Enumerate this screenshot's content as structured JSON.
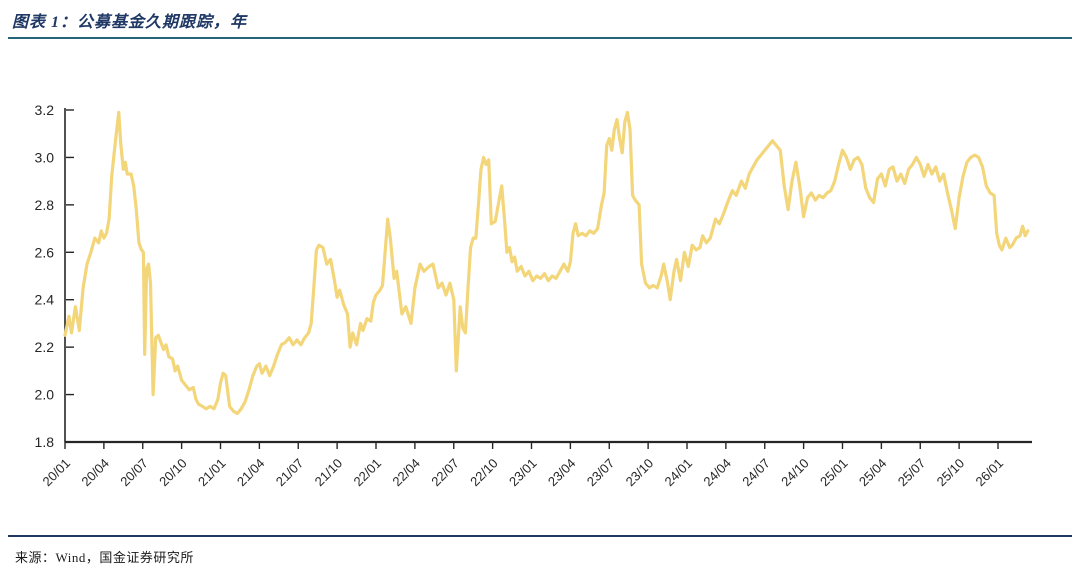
{
  "header": {
    "title": "图表 1：公募基金久期跟踪，年"
  },
  "footer": {
    "source": "来源：Wind，国金证券研究所"
  },
  "colors": {
    "series_line": "#F3D57A",
    "title_text": "#1F3864",
    "title_rule": "#266579",
    "footer_rule": "#1F3864",
    "axis": "#262626",
    "tick_label": "#262626",
    "background": "#FFFFFF"
  },
  "chart_data": {
    "type": "line",
    "title": "公募基金久期跟踪，年",
    "unit": "年",
    "xlabel": "",
    "ylabel": "",
    "grid": false,
    "legend_position": "none",
    "ylim": [
      1.8,
      3.2
    ],
    "y_ticks": [
      1.8,
      2.0,
      2.2,
      2.4,
      2.6,
      2.8,
      3.0,
      3.2
    ],
    "x_tick_labels": [
      "20/01",
      "20/04",
      "20/07",
      "20/10",
      "21/01",
      "21/04",
      "21/07",
      "21/10",
      "22/01",
      "22/04",
      "22/07",
      "22/10",
      "23/01",
      "23/04",
      "23/07",
      "23/10",
      "24/01",
      "24/04",
      "24/07",
      "24/10",
      "25/01",
      "25/04",
      "25/07",
      "25/10",
      "26/01"
    ],
    "x_tick_positions_months": [
      0,
      3,
      6,
      9,
      12,
      15,
      18,
      21,
      24,
      27,
      30,
      33,
      36,
      39,
      42,
      45,
      48,
      51,
      54,
      57,
      60,
      63,
      66,
      69,
      72
    ],
    "x_axis_note": "x = months since 2020-01; series runs from 20/01 to ~26/03",
    "series": [
      {
        "name": "公募基金久期",
        "points": [
          [
            0,
            2.25
          ],
          [
            0.3,
            2.33
          ],
          [
            0.5,
            2.26
          ],
          [
            0.8,
            2.37
          ],
          [
            1.1,
            2.27
          ],
          [
            1.4,
            2.45
          ],
          [
            1.7,
            2.55
          ],
          [
            2,
            2.6
          ],
          [
            2.3,
            2.66
          ],
          [
            2.6,
            2.64
          ],
          [
            2.8,
            2.69
          ],
          [
            3,
            2.66
          ],
          [
            3.2,
            2.68
          ],
          [
            3.4,
            2.74
          ],
          [
            3.6,
            2.92
          ],
          [
            3.8,
            3.02
          ],
          [
            4,
            3.12
          ],
          [
            4.15,
            3.19
          ],
          [
            4.3,
            3.06
          ],
          [
            4.5,
            2.95
          ],
          [
            4.65,
            2.98
          ],
          [
            4.8,
            2.93
          ],
          [
            5.1,
            2.93
          ],
          [
            5.3,
            2.88
          ],
          [
            5.5,
            2.78
          ],
          [
            5.7,
            2.64
          ],
          [
            5.9,
            2.61
          ],
          [
            6.05,
            2.6
          ],
          [
            6.15,
            2.17
          ],
          [
            6.3,
            2.53
          ],
          [
            6.45,
            2.55
          ],
          [
            6.6,
            2.47
          ],
          [
            6.8,
            2.0
          ],
          [
            7,
            2.24
          ],
          [
            7.2,
            2.25
          ],
          [
            7.4,
            2.22
          ],
          [
            7.6,
            2.19
          ],
          [
            7.8,
            2.21
          ],
          [
            8,
            2.16
          ],
          [
            8.3,
            2.15
          ],
          [
            8.5,
            2.1
          ],
          [
            8.7,
            2.12
          ],
          [
            9,
            2.06
          ],
          [
            9.3,
            2.04
          ],
          [
            9.6,
            2.02
          ],
          [
            9.9,
            2.03
          ],
          [
            10.1,
            1.98
          ],
          [
            10.3,
            1.96
          ],
          [
            10.6,
            1.95
          ],
          [
            10.9,
            1.94
          ],
          [
            11.2,
            1.95
          ],
          [
            11.5,
            1.94
          ],
          [
            11.8,
            1.98
          ],
          [
            12,
            2.05
          ],
          [
            12.2,
            2.09
          ],
          [
            12.4,
            2.08
          ],
          [
            12.7,
            1.95
          ],
          [
            13,
            1.93
          ],
          [
            13.3,
            1.92
          ],
          [
            13.6,
            1.94
          ],
          [
            13.9,
            1.97
          ],
          [
            14.2,
            2.02
          ],
          [
            14.5,
            2.08
          ],
          [
            14.8,
            2.12
          ],
          [
            15,
            2.13
          ],
          [
            15.2,
            2.09
          ],
          [
            15.5,
            2.12
          ],
          [
            15.8,
            2.08
          ],
          [
            16.1,
            2.12
          ],
          [
            16.4,
            2.17
          ],
          [
            16.7,
            2.21
          ],
          [
            17,
            2.22
          ],
          [
            17.3,
            2.24
          ],
          [
            17.6,
            2.21
          ],
          [
            17.9,
            2.23
          ],
          [
            18.2,
            2.21
          ],
          [
            18.5,
            2.24
          ],
          [
            18.8,
            2.26
          ],
          [
            19,
            2.3
          ],
          [
            19.2,
            2.45
          ],
          [
            19.4,
            2.61
          ],
          [
            19.6,
            2.63
          ],
          [
            19.9,
            2.62
          ],
          [
            20.2,
            2.55
          ],
          [
            20.5,
            2.57
          ],
          [
            20.8,
            2.48
          ],
          [
            21,
            2.41
          ],
          [
            21.2,
            2.44
          ],
          [
            21.5,
            2.38
          ],
          [
            21.8,
            2.34
          ],
          [
            22,
            2.2
          ],
          [
            22.2,
            2.26
          ],
          [
            22.5,
            2.21
          ],
          [
            22.8,
            2.3
          ],
          [
            23,
            2.27
          ],
          [
            23.3,
            2.32
          ],
          [
            23.6,
            2.31
          ],
          [
            23.8,
            2.39
          ],
          [
            24,
            2.42
          ],
          [
            24.3,
            2.44
          ],
          [
            24.5,
            2.46
          ],
          [
            24.7,
            2.6
          ],
          [
            24.9,
            2.74
          ],
          [
            25.1,
            2.66
          ],
          [
            25.4,
            2.49
          ],
          [
            25.6,
            2.52
          ],
          [
            26,
            2.34
          ],
          [
            26.3,
            2.37
          ],
          [
            26.7,
            2.3
          ],
          [
            27,
            2.45
          ],
          [
            27.4,
            2.55
          ],
          [
            27.7,
            2.52
          ],
          [
            28.1,
            2.54
          ],
          [
            28.4,
            2.55
          ],
          [
            28.8,
            2.45
          ],
          [
            29.1,
            2.47
          ],
          [
            29.4,
            2.42
          ],
          [
            29.7,
            2.47
          ],
          [
            30,
            2.4
          ],
          [
            30.2,
            2.1
          ],
          [
            30.5,
            2.37
          ],
          [
            30.7,
            2.28
          ],
          [
            30.9,
            2.26
          ],
          [
            31.1,
            2.45
          ],
          [
            31.3,
            2.62
          ],
          [
            31.5,
            2.66
          ],
          [
            31.7,
            2.66
          ],
          [
            31.9,
            2.8
          ],
          [
            32.1,
            2.95
          ],
          [
            32.3,
            3.0
          ],
          [
            32.5,
            2.97
          ],
          [
            32.7,
            2.99
          ],
          [
            32.9,
            2.72
          ],
          [
            33.2,
            2.73
          ],
          [
            33.5,
            2.82
          ],
          [
            33.7,
            2.88
          ],
          [
            33.9,
            2.75
          ],
          [
            34.1,
            2.6
          ],
          [
            34.3,
            2.62
          ],
          [
            34.5,
            2.56
          ],
          [
            34.7,
            2.58
          ],
          [
            34.9,
            2.52
          ],
          [
            35.2,
            2.54
          ],
          [
            35.5,
            2.5
          ],
          [
            35.8,
            2.52
          ],
          [
            36.1,
            2.48
          ],
          [
            36.4,
            2.5
          ],
          [
            36.7,
            2.49
          ],
          [
            37,
            2.51
          ],
          [
            37.3,
            2.48
          ],
          [
            37.6,
            2.5
          ],
          [
            37.9,
            2.49
          ],
          [
            38.2,
            2.52
          ],
          [
            38.5,
            2.55
          ],
          [
            38.8,
            2.52
          ],
          [
            39,
            2.56
          ],
          [
            39.2,
            2.68
          ],
          [
            39.4,
            2.72
          ],
          [
            39.6,
            2.67
          ],
          [
            39.9,
            2.68
          ],
          [
            40.2,
            2.67
          ],
          [
            40.5,
            2.69
          ],
          [
            40.8,
            2.68
          ],
          [
            41.1,
            2.7
          ],
          [
            41.4,
            2.8
          ],
          [
            41.6,
            2.85
          ],
          [
            41.8,
            3.05
          ],
          [
            42,
            3.08
          ],
          [
            42.2,
            3.03
          ],
          [
            42.4,
            3.12
          ],
          [
            42.6,
            3.16
          ],
          [
            42.8,
            3.08
          ],
          [
            43,
            3.02
          ],
          [
            43.2,
            3.15
          ],
          [
            43.4,
            3.19
          ],
          [
            43.6,
            3.12
          ],
          [
            43.8,
            2.84
          ],
          [
            44,
            2.82
          ],
          [
            44.3,
            2.8
          ],
          [
            44.5,
            2.55
          ],
          [
            44.8,
            2.47
          ],
          [
            45.1,
            2.45
          ],
          [
            45.4,
            2.46
          ],
          [
            45.7,
            2.45
          ],
          [
            46,
            2.5
          ],
          [
            46.2,
            2.55
          ],
          [
            46.5,
            2.47
          ],
          [
            46.7,
            2.4
          ],
          [
            47,
            2.52
          ],
          [
            47.2,
            2.57
          ],
          [
            47.5,
            2.48
          ],
          [
            47.8,
            2.6
          ],
          [
            48.1,
            2.54
          ],
          [
            48.4,
            2.63
          ],
          [
            48.7,
            2.61
          ],
          [
            49,
            2.62
          ],
          [
            49.2,
            2.67
          ],
          [
            49.5,
            2.64
          ],
          [
            49.8,
            2.66
          ],
          [
            50.2,
            2.74
          ],
          [
            50.5,
            2.72
          ],
          [
            50.8,
            2.76
          ],
          [
            51.2,
            2.82
          ],
          [
            51.5,
            2.86
          ],
          [
            51.8,
            2.84
          ],
          [
            52.2,
            2.9
          ],
          [
            52.5,
            2.87
          ],
          [
            52.8,
            2.93
          ],
          [
            53.1,
            2.96
          ],
          [
            53.4,
            2.99
          ],
          [
            53.7,
            3.01
          ],
          [
            54,
            3.03
          ],
          [
            54.3,
            3.05
          ],
          [
            54.6,
            3.07
          ],
          [
            54.9,
            3.05
          ],
          [
            55.2,
            3.03
          ],
          [
            55.5,
            2.88
          ],
          [
            55.8,
            2.78
          ],
          [
            56.1,
            2.9
          ],
          [
            56.4,
            2.98
          ],
          [
            56.7,
            2.88
          ],
          [
            57,
            2.75
          ],
          [
            57.3,
            2.83
          ],
          [
            57.6,
            2.85
          ],
          [
            57.9,
            2.82
          ],
          [
            58.2,
            2.84
          ],
          [
            58.5,
            2.83
          ],
          [
            58.8,
            2.85
          ],
          [
            59.1,
            2.86
          ],
          [
            59.4,
            2.9
          ],
          [
            59.7,
            2.97
          ],
          [
            60,
            3.03
          ],
          [
            60.3,
            3.0
          ],
          [
            60.6,
            2.95
          ],
          [
            60.9,
            2.99
          ],
          [
            61.2,
            3.0
          ],
          [
            61.5,
            2.97
          ],
          [
            61.8,
            2.87
          ],
          [
            62.1,
            2.83
          ],
          [
            62.4,
            2.81
          ],
          [
            62.7,
            2.91
          ],
          [
            63,
            2.93
          ],
          [
            63.3,
            2.88
          ],
          [
            63.6,
            2.95
          ],
          [
            63.9,
            2.96
          ],
          [
            64.2,
            2.9
          ],
          [
            64.5,
            2.93
          ],
          [
            64.8,
            2.89
          ],
          [
            65.1,
            2.95
          ],
          [
            65.4,
            2.97
          ],
          [
            65.7,
            3.0
          ],
          [
            66,
            2.97
          ],
          [
            66.3,
            2.92
          ],
          [
            66.6,
            2.97
          ],
          [
            66.9,
            2.93
          ],
          [
            67.2,
            2.96
          ],
          [
            67.5,
            2.9
          ],
          [
            67.8,
            2.93
          ],
          [
            68.1,
            2.85
          ],
          [
            68.4,
            2.78
          ],
          [
            68.7,
            2.7
          ],
          [
            69,
            2.83
          ],
          [
            69.3,
            2.92
          ],
          [
            69.6,
            2.98
          ],
          [
            69.9,
            3.0
          ],
          [
            70.2,
            3.01
          ],
          [
            70.5,
            3.0
          ],
          [
            70.8,
            2.96
          ],
          [
            71.1,
            2.88
          ],
          [
            71.4,
            2.85
          ],
          [
            71.7,
            2.84
          ],
          [
            71.9,
            2.68
          ],
          [
            72.1,
            2.63
          ],
          [
            72.3,
            2.61
          ],
          [
            72.6,
            2.66
          ],
          [
            72.9,
            2.62
          ],
          [
            73.1,
            2.63
          ],
          [
            73.4,
            2.66
          ],
          [
            73.7,
            2.67
          ],
          [
            73.9,
            2.71
          ],
          [
            74.1,
            2.67
          ],
          [
            74.3,
            2.69
          ]
        ]
      }
    ]
  }
}
